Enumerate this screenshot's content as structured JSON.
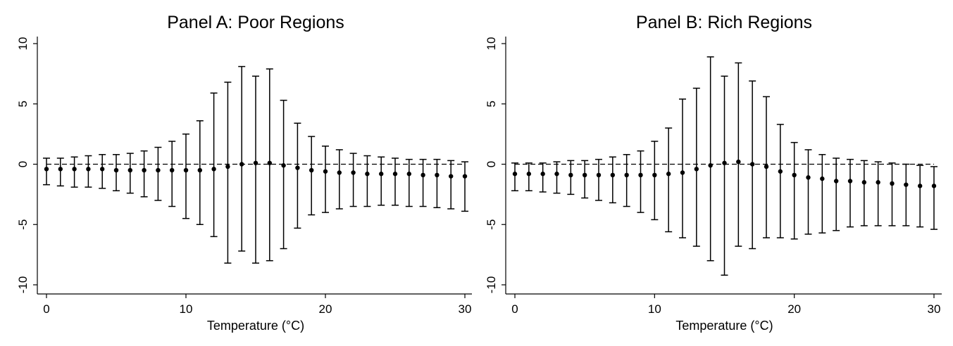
{
  "chart_data": [
    {
      "type": "scatter",
      "title": "Panel A: Poor Regions",
      "xlabel": "Temperature (°C)",
      "ylabel": "",
      "xlim": [
        0,
        30
      ],
      "ylim": [
        -10,
        10
      ],
      "xticks": [
        0,
        10,
        20,
        30
      ],
      "yticks": [
        -10,
        -5,
        0,
        5,
        10
      ],
      "ytick_labels": [
        "-10",
        "-5",
        "0",
        "5",
        "10"
      ],
      "xtick_labels": [
        "0",
        "10",
        "20",
        "30"
      ],
      "reference_line": 0,
      "x": [
        0,
        1,
        2,
        3,
        4,
        5,
        6,
        7,
        8,
        9,
        10,
        11,
        12,
        13,
        14,
        15,
        16,
        17,
        18,
        19,
        20,
        21,
        22,
        23,
        24,
        25,
        26,
        27,
        28,
        29,
        30
      ],
      "y": [
        -0.4,
        -0.4,
        -0.4,
        -0.4,
        -0.4,
        -0.5,
        -0.5,
        -0.5,
        -0.5,
        -0.5,
        -0.5,
        -0.5,
        -0.4,
        -0.2,
        0.0,
        0.1,
        0.1,
        -0.1,
        -0.3,
        -0.5,
        -0.6,
        -0.7,
        -0.7,
        -0.8,
        -0.8,
        -0.8,
        -0.8,
        -0.9,
        -0.9,
        -1.0,
        -1.0
      ],
      "ci_low": [
        -1.7,
        -1.8,
        -1.9,
        -1.9,
        -2.0,
        -2.2,
        -2.4,
        -2.7,
        -3.0,
        -3.5,
        -4.5,
        -5.0,
        -6.0,
        -8.2,
        -7.2,
        -8.2,
        -8.0,
        -7.0,
        -5.3,
        -4.2,
        -4.0,
        -3.7,
        -3.5,
        -3.5,
        -3.4,
        -3.4,
        -3.5,
        -3.5,
        -3.6,
        -3.7,
        -3.9
      ],
      "ci_high": [
        0.5,
        0.5,
        0.6,
        0.7,
        0.8,
        0.8,
        0.9,
        1.1,
        1.4,
        1.9,
        2.5,
        3.6,
        5.9,
        6.8,
        8.1,
        7.3,
        7.9,
        5.3,
        3.4,
        2.3,
        1.5,
        1.2,
        0.9,
        0.7,
        0.6,
        0.5,
        0.4,
        0.4,
        0.4,
        0.3,
        0.2
      ]
    },
    {
      "type": "scatter",
      "title": "Panel B: Rich Regions",
      "xlabel": "Temperature (°C)",
      "ylabel": "",
      "xlim": [
        0,
        30
      ],
      "ylim": [
        -10,
        10
      ],
      "xticks": [
        0,
        10,
        20,
        30
      ],
      "yticks": [
        -10,
        -5,
        0,
        5,
        10
      ],
      "ytick_labels": [
        "-10",
        "-5",
        "0",
        "5",
        "10"
      ],
      "xtick_labels": [
        "0",
        "10",
        "20",
        "30"
      ],
      "reference_line": 0,
      "x": [
        0,
        1,
        2,
        3,
        4,
        5,
        6,
        7,
        8,
        9,
        10,
        11,
        12,
        13,
        14,
        15,
        16,
        17,
        18,
        19,
        20,
        21,
        22,
        23,
        24,
        25,
        26,
        27,
        28,
        29,
        30
      ],
      "y": [
        -0.8,
        -0.8,
        -0.8,
        -0.8,
        -0.9,
        -0.9,
        -0.9,
        -0.9,
        -0.9,
        -0.9,
        -0.9,
        -0.8,
        -0.7,
        -0.4,
        -0.1,
        0.1,
        0.2,
        0.0,
        -0.2,
        -0.6,
        -0.9,
        -1.1,
        -1.2,
        -1.4,
        -1.4,
        -1.5,
        -1.5,
        -1.6,
        -1.7,
        -1.8,
        -1.8
      ],
      "ci_low": [
        -2.2,
        -2.2,
        -2.3,
        -2.4,
        -2.5,
        -2.8,
        -3.0,
        -3.2,
        -3.5,
        -4.0,
        -4.6,
        -5.6,
        -6.1,
        -6.8,
        -8.0,
        -9.2,
        -6.8,
        -7.0,
        -6.1,
        -6.1,
        -6.2,
        -5.8,
        -5.7,
        -5.5,
        -5.2,
        -5.1,
        -5.1,
        -5.1,
        -5.1,
        -5.2,
        -5.4
      ],
      "ci_high": [
        0.1,
        0.1,
        0.1,
        0.2,
        0.3,
        0.3,
        0.4,
        0.6,
        0.8,
        1.1,
        1.9,
        3.0,
        5.4,
        6.3,
        8.9,
        7.3,
        8.4,
        6.9,
        5.6,
        3.3,
        1.8,
        1.2,
        0.8,
        0.5,
        0.4,
        0.3,
        0.2,
        0.1,
        0.0,
        -0.1,
        -0.2
      ]
    }
  ]
}
